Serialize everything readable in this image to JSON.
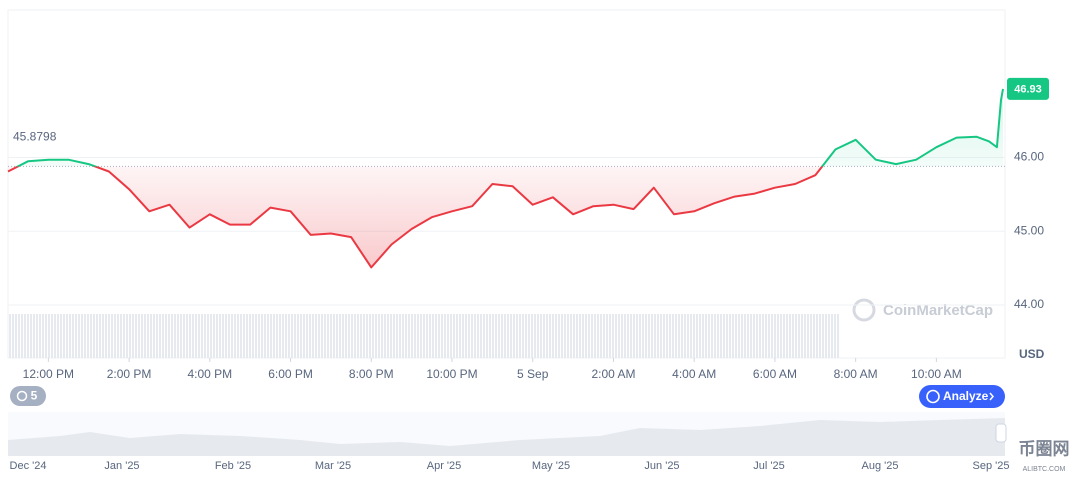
{
  "chart_data": {
    "type": "line",
    "x": [
      11,
      11.5,
      12,
      12.5,
      13,
      13.5,
      14,
      14.5,
      15,
      15.5,
      16,
      16.5,
      17,
      17.5,
      18,
      18.5,
      19,
      19.5,
      20,
      20.5,
      21,
      21.5,
      22,
      22.5,
      23,
      23.5,
      24,
      24.5,
      25,
      25.5,
      26,
      26.5,
      27,
      27.5,
      28,
      28.5,
      29,
      29.5,
      30,
      30.5,
      31,
      31.5,
      32,
      32.5,
      33,
      33.5,
      34,
      34.5,
      35,
      35.3,
      35.5,
      35.6,
      35.65
    ],
    "values": [
      45.81,
      45.95,
      45.97,
      45.97,
      45.91,
      45.81,
      45.57,
      45.27,
      45.36,
      45.05,
      45.23,
      45.09,
      45.09,
      45.32,
      45.27,
      44.95,
      44.97,
      44.92,
      44.51,
      44.82,
      45.03,
      45.19,
      45.27,
      45.34,
      45.64,
      45.61,
      45.36,
      45.46,
      45.23,
      45.34,
      45.36,
      45.3,
      45.59,
      45.23,
      45.27,
      45.38,
      45.47,
      45.51,
      45.59,
      45.64,
      45.76,
      46.11,
      46.24,
      45.97,
      45.91,
      45.97,
      46.14,
      46.27,
      46.28,
      46.22,
      46.14,
      46.78,
      46.93
    ],
    "baseline": 45.8798,
    "up_color": "#16c784",
    "down_color": "#ea3943",
    "xlim": [
      11,
      35.7
    ],
    "xticks": [
      {
        "value": 12,
        "label": "12:00 PM"
      },
      {
        "value": 14,
        "label": "2:00 PM"
      },
      {
        "value": 16,
        "label": "4:00 PM"
      },
      {
        "value": 18,
        "label": "6:00 PM"
      },
      {
        "value": 20,
        "label": "8:00 PM"
      },
      {
        "value": 22,
        "label": "10:00 PM"
      },
      {
        "value": 24,
        "label": "5 Sep"
      },
      {
        "value": 26,
        "label": "2:00 AM"
      },
      {
        "value": 28,
        "label": "4:00 AM"
      },
      {
        "value": 30,
        "label": "6:00 AM"
      },
      {
        "value": 32,
        "label": "8:00 AM"
      },
      {
        "value": 34,
        "label": "10:00 AM"
      }
    ],
    "ylim": [
      44,
      48
    ],
    "yticks": [
      {
        "value": 44,
        "label": "44.00"
      },
      {
        "value": 45,
        "label": "45.00"
      },
      {
        "value": 46,
        "label": "46.00"
      }
    ],
    "y_axis_label": "USD",
    "last_label": "46.93",
    "grid": true
  },
  "navigator": {
    "months": [
      "Dec '24",
      "Jan '25",
      "Feb '25",
      "Mar '25",
      "Apr '25",
      "May '25",
      "Jun '25",
      "Jul '25",
      "Aug '25",
      "Sep '25"
    ]
  },
  "ui": {
    "history_badge": "5",
    "analyze_button": "Analyze",
    "watermark": "CoinMarketCap",
    "site_logo": "币圈网",
    "site_url": "ALIBTC.COM"
  }
}
